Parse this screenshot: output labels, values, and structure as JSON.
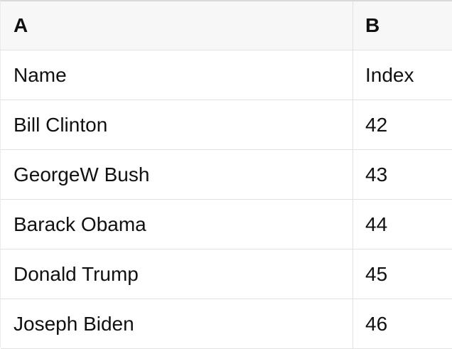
{
  "table": {
    "header": [
      "A",
      "B"
    ],
    "rows": [
      [
        "Name",
        "Index"
      ],
      [
        "Bill Clinton",
        "42"
      ],
      [
        "GeorgeW Bush",
        "43"
      ],
      [
        "Barack Obama",
        "44"
      ],
      [
        "Donald Trump",
        "45"
      ],
      [
        "Joseph Biden",
        "46"
      ]
    ]
  },
  "colors": {
    "header_background": "#f7f7f7",
    "row_background": "#ffffff",
    "border": "#e1e1e1",
    "top_border": "#d9d9d9",
    "text": "#111111"
  }
}
